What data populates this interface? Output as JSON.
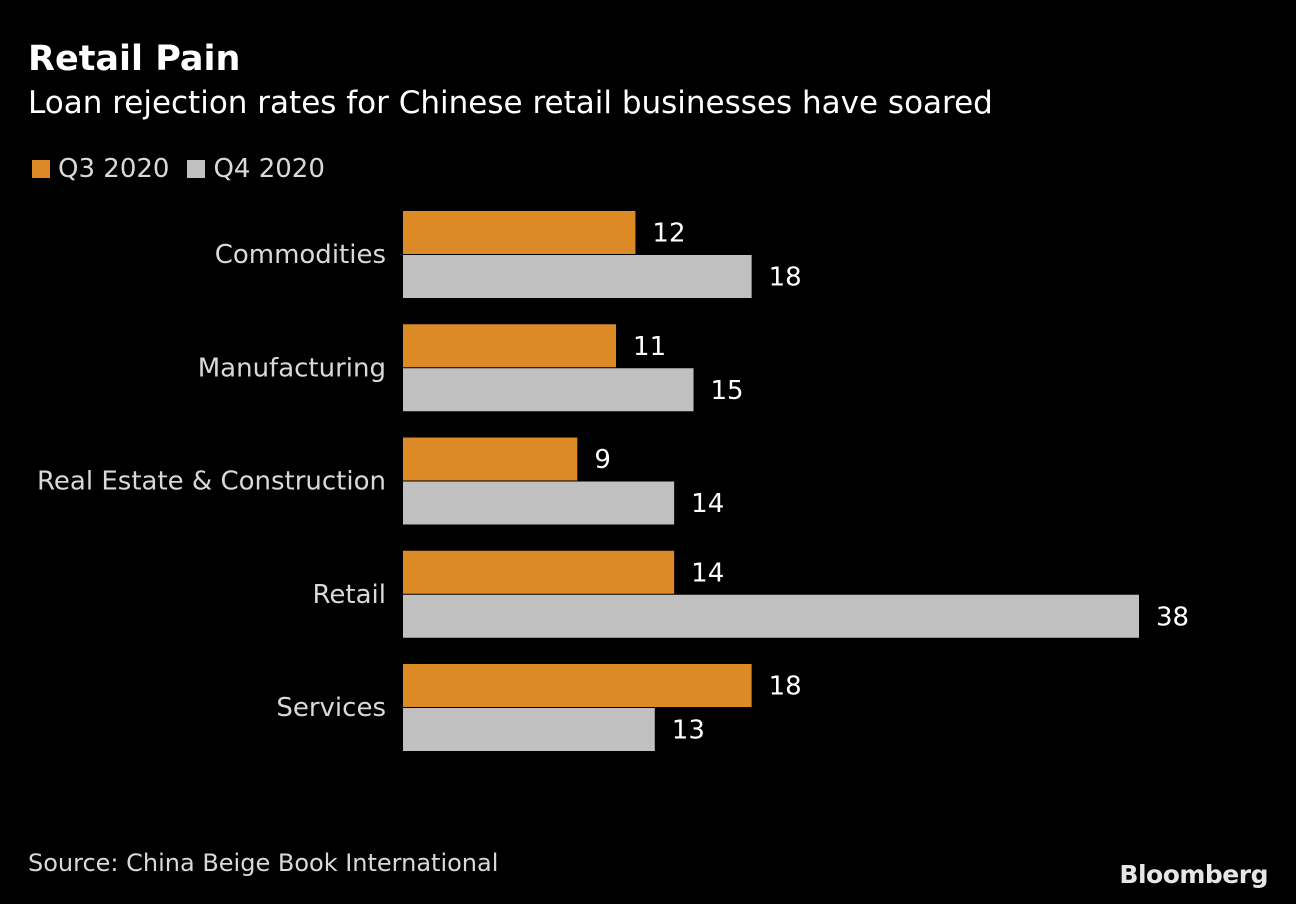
{
  "title": "Retail Pain",
  "subtitle": "Loan rejection rates for Chinese retail businesses have soared",
  "source": "Source: China Beige Book International",
  "brand": "Bloomberg",
  "colors": {
    "q3": "#DB8A25",
    "q4": "#C0C0C0",
    "background": "#000000"
  },
  "chart_data": {
    "type": "bar",
    "orientation": "horizontal",
    "categories": [
      "Commodities",
      "Manufacturing",
      "Real Estate & Construction",
      "Retail",
      "Services"
    ],
    "series": [
      {
        "name": "Q3 2020",
        "values": [
          12,
          11,
          9,
          14,
          18
        ]
      },
      {
        "name": "Q4 2020",
        "values": [
          18,
          15,
          14,
          38,
          13
        ]
      }
    ],
    "title": "Retail Pain",
    "subtitle": "Loan rejection rates for Chinese retail businesses have soared",
    "xlim": [
      0,
      38
    ],
    "grid": false,
    "legend_position": "top-left",
    "data_labels": true
  }
}
